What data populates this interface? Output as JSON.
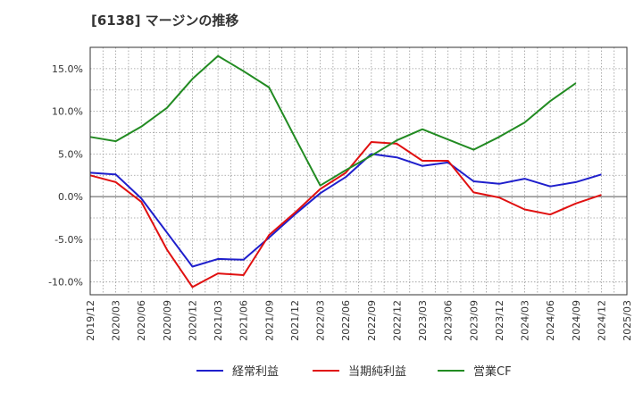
{
  "title": "[6138]  マージンの推移",
  "colors": {
    "keijo": "#1f1fcc",
    "junri": "#e01010",
    "cf": "#228b22",
    "grid": "#999999",
    "zero": "#555555"
  },
  "chart_data": {
    "type": "line",
    "title": "[6138]  マージンの推移",
    "xlabel": "",
    "ylabel": "",
    "x_ticks": [
      "2019/12",
      "2020/03",
      "2020/06",
      "2020/09",
      "2020/12",
      "2021/03",
      "2021/06",
      "2021/09",
      "2021/12",
      "2022/03",
      "2022/06",
      "2022/09",
      "2022/12",
      "2023/03",
      "2023/06",
      "2023/09",
      "2023/12",
      "2024/03",
      "2024/06",
      "2024/09",
      "2024/12",
      "2025/03"
    ],
    "y_ticks": [
      "15.0%",
      "10.0%",
      "5.0%",
      "0.0%",
      "-5.0%",
      "-10.0%"
    ],
    "y_tick_values": [
      15,
      10,
      5,
      0,
      -5,
      -10
    ],
    "ylim": [
      -11.5,
      17.5
    ],
    "grid": true,
    "legend_position": "bottom",
    "series": [
      {
        "name": "経常利益",
        "color_key": "keijo",
        "x": [
          "2019/12",
          "2020/03",
          "2020/06",
          "2020/09",
          "2020/12",
          "2021/03",
          "2021/06",
          "2021/09",
          "2021/12",
          "2022/03",
          "2022/06",
          "2022/09",
          "2022/12",
          "2023/03",
          "2023/06",
          "2023/09",
          "2023/12",
          "2024/03",
          "2024/06",
          "2024/09",
          "2024/12"
        ],
        "values": [
          2.8,
          2.6,
          -0.2,
          -4.2,
          -8.2,
          -7.3,
          -7.4,
          -4.8,
          -2.1,
          0.4,
          2.3,
          5.0,
          4.6,
          3.6,
          4.0,
          1.8,
          1.5,
          2.1,
          1.2,
          1.7,
          2.6
        ]
      },
      {
        "name": "当期純利益",
        "color_key": "junri",
        "x": [
          "2019/12",
          "2020/03",
          "2020/06",
          "2020/09",
          "2020/12",
          "2021/03",
          "2021/06",
          "2021/09",
          "2021/12",
          "2022/03",
          "2022/06",
          "2022/09",
          "2022/12",
          "2023/03",
          "2023/06",
          "2023/09",
          "2023/12",
          "2024/03",
          "2024/06",
          "2024/09",
          "2024/12"
        ],
        "values": [
          2.5,
          1.7,
          -0.6,
          -6.2,
          -10.6,
          -9.0,
          -9.2,
          -4.5,
          -1.9,
          0.9,
          2.8,
          6.4,
          6.2,
          4.2,
          4.2,
          0.5,
          -0.1,
          -1.5,
          -2.1,
          -0.8,
          0.2
        ]
      },
      {
        "name": "営業CF",
        "color_key": "cf",
        "x": [
          "2019/12",
          "2020/03",
          "2020/06",
          "2020/09",
          "2020/12",
          "2021/03",
          "2021/06",
          "2021/09",
          "2021/12",
          "2022/03",
          "2022/06",
          "2022/09",
          "2022/12",
          "2023/03",
          "2023/06",
          "2023/09",
          "2023/12",
          "2024/03",
          "2024/06",
          "2024/09"
        ],
        "values": [
          7.0,
          6.5,
          8.2,
          10.4,
          13.8,
          16.5,
          14.7,
          12.8,
          7.0,
          1.3,
          3.1,
          4.8,
          6.6,
          7.9,
          6.7,
          5.5,
          7.0,
          8.7,
          11.2,
          13.3
        ]
      }
    ]
  }
}
